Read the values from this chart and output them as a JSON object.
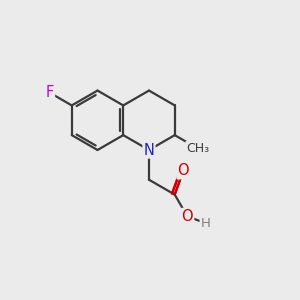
{
  "background_color": "#ebebeb",
  "bond_color": "#3a3a3a",
  "atom_colors": {
    "F": "#cc00cc",
    "N": "#2020cc",
    "O": "#cc0000",
    "H": "#808080"
  },
  "figsize": [
    3.0,
    3.0
  ],
  "dpi": 100,
  "lw": 1.6,
  "fs": 10.5
}
